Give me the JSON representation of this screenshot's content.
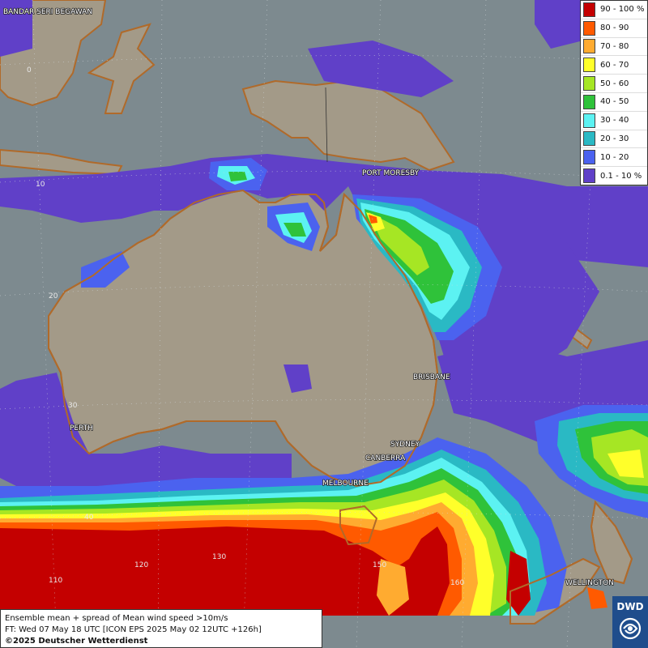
{
  "map": {
    "cities": [
      {
        "name": "BANDAR SERI BEGAWAN"
      },
      {
        "name": "PORT MORESBY"
      },
      {
        "name": "BRISBANE"
      },
      {
        "name": "PERTH"
      },
      {
        "name": "SYDNEY"
      },
      {
        "name": "CANBERRA"
      },
      {
        "name": "MELBOURNE"
      },
      {
        "name": "WELLINGTON"
      }
    ],
    "lat_labels": [
      "0",
      "10",
      "20",
      "30",
      "40"
    ],
    "lon_labels": [
      "110",
      "120",
      "130",
      "150",
      "160"
    ]
  },
  "legend": {
    "title": "",
    "items": [
      {
        "label": "90 - 100 %",
        "color": "#c40000"
      },
      {
        "label": "80 - 90",
        "color": "#ff5a00"
      },
      {
        "label": "70 - 80",
        "color": "#ffab30"
      },
      {
        "label": "60 - 70",
        "color": "#ffff2a"
      },
      {
        "label": "50 - 60",
        "color": "#a6e624"
      },
      {
        "label": "40 - 50",
        "color": "#2fc23a"
      },
      {
        "label": "30 - 40",
        "color": "#5cf2f2"
      },
      {
        "label": "20 - 30",
        "color": "#2ab9c4"
      },
      {
        "label": "10 - 20",
        "color": "#4b62ef"
      },
      {
        "label": "0.1 - 10 %",
        "color": "#6040c8"
      }
    ]
  },
  "info": {
    "line1": "Ensemble mean + spread of Mean wind speed >10m/s",
    "line2": "FT: Wed 07 May 18 UTC [ICON EPS 2025 May 02 12UTC +126h]",
    "copyright": "©2025 Deutscher Wetterdienst"
  },
  "logo": {
    "text": "DWD"
  }
}
